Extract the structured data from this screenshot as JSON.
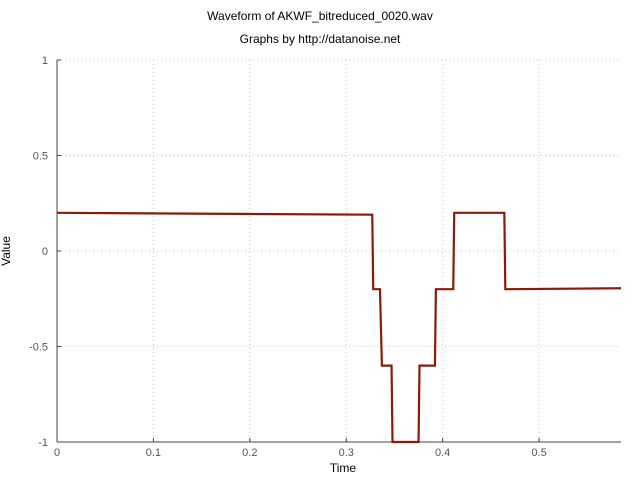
{
  "chart_data": {
    "type": "line",
    "title": "Waveform of AKWF_bitreduced_0020.wav",
    "subtitle": "Graphs by http://datanoise.net",
    "xlabel": "Time",
    "ylabel": "Value",
    "xlim": [
      0,
      0.585
    ],
    "ylim": [
      -1,
      1
    ],
    "xticks": [
      0,
      0.1,
      0.2,
      0.3,
      0.4,
      0.5
    ],
    "xtick_labels": [
      "0",
      "0.1",
      "0.2",
      "0.3",
      "0.4",
      "0.5"
    ],
    "yticks": [
      -1,
      -0.5,
      0,
      0.5,
      1
    ],
    "ytick_labels": [
      "-1",
      "-0.5",
      "0",
      "0.5",
      "1"
    ],
    "grid": true,
    "line_color": "#8b1a0a",
    "series": [
      {
        "x": [
          0,
          0.327,
          0.328,
          0.335,
          0.337,
          0.347,
          0.348,
          0.375,
          0.376,
          0.392,
          0.393,
          0.411,
          0.412,
          0.464,
          0.465,
          0.585
        ],
        "y": [
          0.2,
          0.19,
          -0.2,
          -0.2,
          -0.6,
          -0.6,
          -1.0,
          -1.0,
          -0.6,
          -0.6,
          -0.2,
          -0.2,
          0.2,
          0.2,
          -0.2,
          -0.195
        ]
      }
    ]
  }
}
